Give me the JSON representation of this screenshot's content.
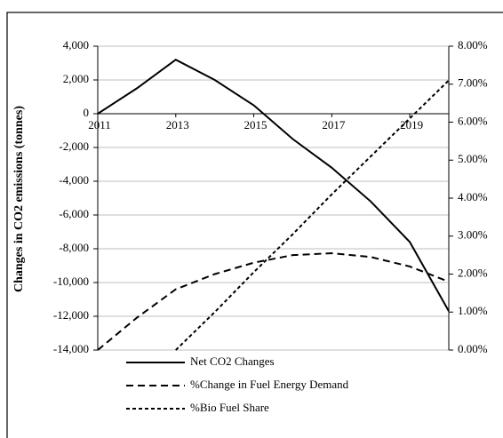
{
  "chart_data": {
    "type": "line",
    "y_label": "Changes in CO2 emissions (tonnes)",
    "x": [
      2011,
      2012,
      2013,
      2014,
      2015,
      2016,
      2017,
      2018,
      2019,
      2020
    ],
    "xlim": [
      2011,
      2020
    ],
    "xticks": [
      2011,
      2013,
      2015,
      2017,
      2019
    ],
    "ylim": [
      -14000,
      4000
    ],
    "yticks": [
      {
        "value": 4000,
        "label": "4,000"
      },
      {
        "value": 2000,
        "label": "2,000"
      },
      0,
      {
        "value": -2000,
        "label": "-2,000"
      },
      {
        "value": -4000,
        "label": "-4,000"
      },
      {
        "value": -6000,
        "label": "-6,000"
      },
      {
        "value": -8000,
        "label": "-8,000"
      },
      {
        "value": -10000,
        "label": "-10,000"
      },
      {
        "value": -12000,
        "label": "-12,000"
      },
      {
        "value": -14000,
        "label": "-14,000"
      }
    ],
    "y2lim": [
      0,
      8
    ],
    "y2ticks": [
      {
        "value": 8,
        "label": "8.00%"
      },
      {
        "value": 7,
        "label": "7.00%"
      },
      {
        "value": 6,
        "label": "6.00%"
      },
      {
        "value": 5,
        "label": "5.00%"
      },
      {
        "value": 4,
        "label": "4.00%"
      },
      {
        "value": 3,
        "label": "3.00%"
      },
      {
        "value": 2,
        "label": "2.00%"
      },
      {
        "value": 1,
        "label": "1.00%"
      },
      {
        "value": 0,
        "label": "0.00%"
      }
    ],
    "grid": true,
    "series": [
      {
        "name": "Net CO2 Changes",
        "color": "#000000",
        "dash": "none",
        "values": [
          0,
          1500,
          3200,
          2000,
          500,
          -1500,
          -3200,
          -5200,
          -7600,
          -11700
        ]
      },
      {
        "name": "%Change in Fuel Energy Demand",
        "color": "#000000",
        "dash": "8,5",
        "axis": "y2",
        "values": [
          0,
          0.85,
          1.6,
          2.0,
          2.3,
          2.5,
          2.55,
          2.45,
          2.2,
          1.8
        ]
      },
      {
        "name": "%Bio Fuel Share",
        "color": "#000000",
        "dash": "4,3",
        "axis": "y2",
        "values": [
          null,
          null,
          0,
          1.0,
          2.05,
          3.05,
          4.1,
          5.1,
          6.1,
          7.1
        ]
      }
    ]
  }
}
